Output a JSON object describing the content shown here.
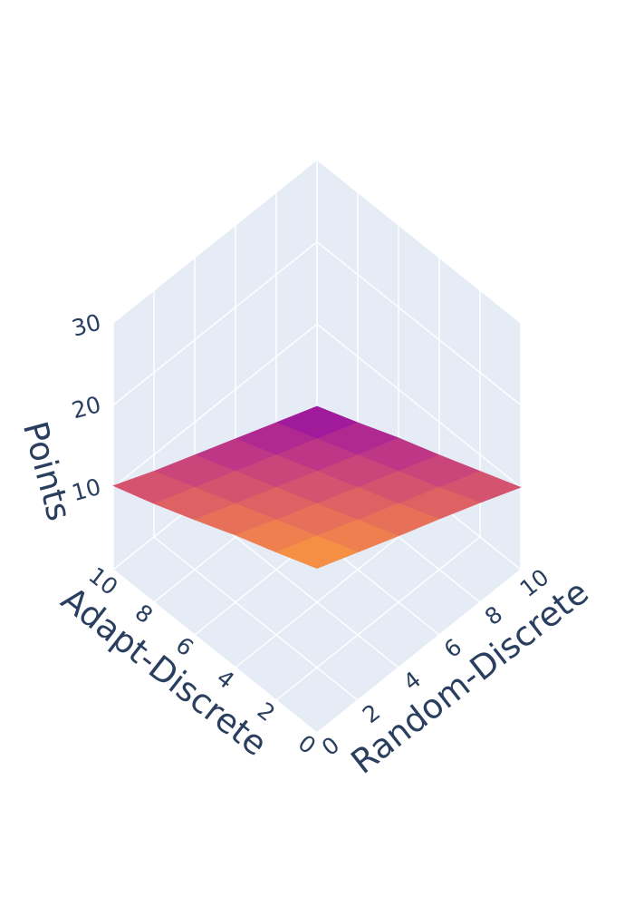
{
  "chart_data": {
    "type": "surface",
    "colorscale": [
      "#0d0887",
      "#46039f",
      "#7201a8",
      "#9c179e",
      "#bd3786",
      "#d8576b",
      "#ed7953",
      "#fb9f3a",
      "#fdca26",
      "#f0f921"
    ],
    "pane_color": "#e5ecf6",
    "grid_color": "#ffffff",
    "axes": {
      "x": {
        "title": "Adapt-Discrete",
        "range": [
          0,
          10
        ],
        "ticks": [
          0,
          2,
          4,
          6,
          8,
          10
        ]
      },
      "y": {
        "title": "Random-Discrete",
        "range": [
          0,
          10
        ],
        "ticks": [
          0,
          2,
          4,
          6,
          8,
          10
        ]
      },
      "z": {
        "title": "Points",
        "range": [
          0,
          30
        ],
        "ticks": [
          10,
          20,
          30
        ]
      }
    },
    "x": [
      0,
      2,
      4,
      6,
      8,
      10
    ],
    "y": [
      0,
      2,
      4,
      6,
      8,
      10
    ],
    "z": [
      [
        20.0,
        18.0,
        16.0,
        14.1,
        12.1,
        10.0
      ],
      [
        18.0,
        16.0,
        14.0,
        12.0,
        10.0,
        8.0
      ],
      [
        16.1,
        14.0,
        12.0,
        10.0,
        8.0,
        6.0
      ],
      [
        14.0,
        12.0,
        10.0,
        8.0,
        6.0,
        4.1
      ],
      [
        12.0,
        10.0,
        8.0,
        6.0,
        4.0,
        2.0
      ],
      [
        10.2,
        8.0,
        6.0,
        4.0,
        2.0,
        0.0
      ]
    ]
  }
}
